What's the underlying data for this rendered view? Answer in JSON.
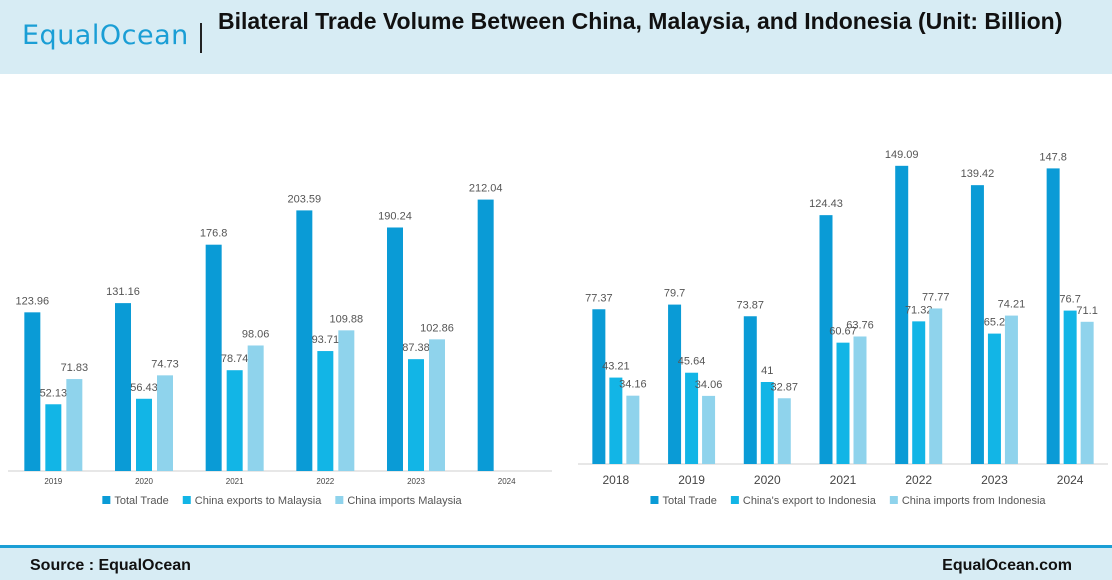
{
  "header": {
    "logo": "EqualOcean",
    "title": "Bilateral Trade Volume Between China, Malaysia, and Indonesia (Unit: Billion)"
  },
  "footer": {
    "source": "Source : EqualOcean",
    "site": "EqualOcean.com"
  },
  "colors": {
    "total": "#0a9bd6",
    "exports": "#12b5e6",
    "imports": "#8fd3ec",
    "header_bg": "#d7ecf4",
    "accent": "#1a9ed5"
  },
  "chart_data": [
    {
      "type": "bar",
      "title": "",
      "categories": [
        "2019",
        "2020",
        "2021",
        "2022",
        "2023",
        "2024"
      ],
      "series": [
        {
          "name": "Total Trade",
          "values": [
            123.96,
            131.16,
            176.8,
            203.59,
            190.24,
            212.04
          ],
          "labels": [
            "123.96",
            "131.16",
            "176.8",
            "203.59",
            "190.24",
            "212.04"
          ]
        },
        {
          "name": "China exports to Malaysia",
          "values": [
            52.13,
            56.43,
            78.74,
            93.71,
            87.38,
            null
          ],
          "labels": [
            "52.13",
            "56.43",
            "78.74",
            "93.71",
            "87.38",
            ""
          ]
        },
        {
          "name": "China imports Malaysia",
          "values": [
            71.83,
            74.73,
            98.06,
            109.88,
            102.86,
            null
          ],
          "labels": [
            "71.83",
            "74.73",
            "98.06",
            "109.88",
            "102.86",
            ""
          ]
        }
      ],
      "ylim": [
        0,
        250
      ],
      "grid": false,
      "legend": "bottom"
    },
    {
      "type": "bar",
      "title": "",
      "categories": [
        "2018",
        "2019",
        "2020",
        "2021",
        "2022",
        "2023",
        "2024"
      ],
      "series": [
        {
          "name": "Total Trade",
          "values": [
            77.37,
            79.7,
            73.87,
            124.43,
            149.09,
            139.42,
            147.8
          ],
          "labels": [
            "77.37",
            "79.7",
            "73.87",
            "124.43",
            "149.09",
            "139.42",
            "147.8"
          ]
        },
        {
          "name": "China's export to Indonesia",
          "values": [
            43.21,
            45.64,
            41,
            60.67,
            71.32,
            65.2,
            76.7
          ],
          "labels": [
            "43.21",
            "45.64",
            "41",
            "60.67",
            "71.32",
            "65.2",
            "76.7"
          ]
        },
        {
          "name": "China imports from Indonesia",
          "values": [
            34.16,
            34.06,
            32.87,
            63.76,
            77.77,
            74.21,
            71.1
          ],
          "labels": [
            "34.16",
            "34.06",
            "32.87",
            "63.76",
            "77.77",
            "74.21",
            "71.1"
          ]
        }
      ],
      "ylim": [
        0,
        160
      ],
      "grid": false,
      "legend": "bottom"
    }
  ]
}
